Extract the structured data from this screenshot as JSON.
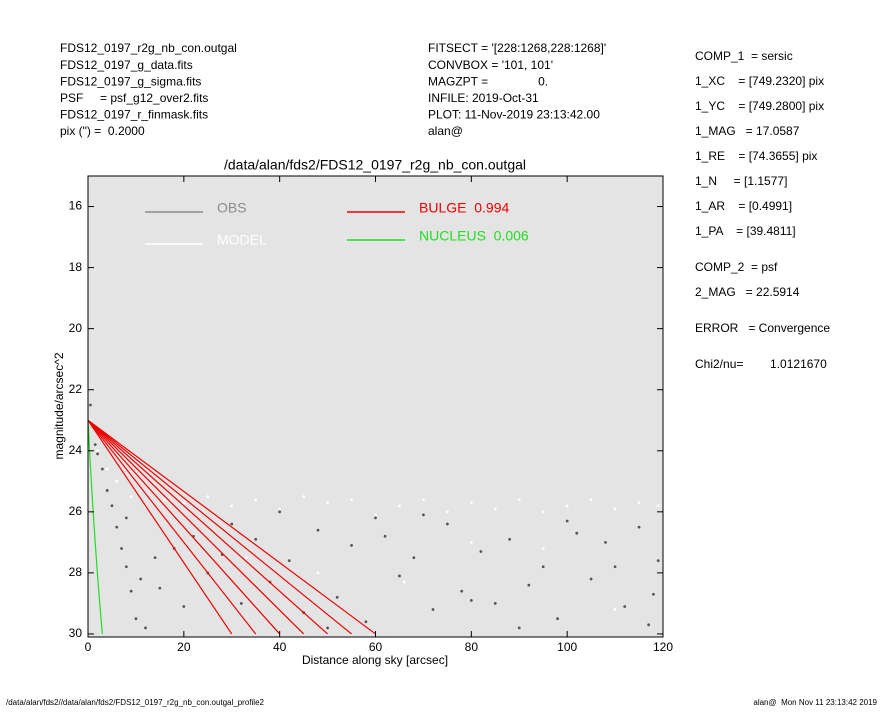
{
  "header": {
    "left": [
      "FDS12_0197_r2g_nb_con.outgal",
      "FDS12_0197_g_data.fits",
      "FDS12_0197_g_sigma.fits",
      "PSF     = psf_g12_over2.fits",
      "FDS12_0197_r_finmask.fits",
      "pix (\") =  0.2000"
    ],
    "middle": [
      "FITSECT = '[228:1268,228:1268]'",
      "CONVBOX = '101, 101'",
      "MAGZPT =               0.",
      "INFILE: 2019-Oct-31",
      "PLOT: 11-Nov-2019 23:13:42.00",
      "alan@"
    ]
  },
  "sidebar": [
    [
      "COMP_1  = sersic",
      "1_XC    = [749.2320] pix",
      "1_YC    = [749.2800] pix",
      "1_MAG   = 17.0587",
      "1_RE    = [74.3655] pix",
      "1_N     = [1.1577]",
      "1_AR    = [0.4991]",
      "1_PA    = [39.4811]"
    ],
    [
      "COMP_2  = psf",
      "2_MAG   = 22.5914"
    ],
    [
      "ERROR   = Convergence"
    ],
    [
      "Chi2/nu=        1.0121670"
    ]
  ],
  "footer": {
    "left": "/data/alan/fds2//data/alan/fds2/FDS12_0197_r2g_nb_con.outgal_profile2",
    "right": "alan@  Mon Nov 11 23:13:42 2019"
  },
  "chart_data": {
    "type": "scatter",
    "title": "/data/alan/fds2/FDS12_0197_r2g_nb_con.outgal",
    "x_label": "Distance along sky [arcsec]",
    "y_label": "magnitude/arcsec^2",
    "xlim": [
      0,
      120
    ],
    "xticks": [
      0,
      20,
      40,
      60,
      80,
      100,
      120
    ],
    "ylim": [
      30.1,
      15
    ],
    "yticks": [
      16,
      18,
      20,
      22,
      24,
      26,
      28,
      30
    ],
    "background": "#e4e4e4",
    "series": [
      {
        "name": "OBS",
        "color": "#555555",
        "legend_color": "#8c8c8c",
        "mode": "markers",
        "x": [
          0.5,
          1,
          1.5,
          2,
          3,
          4,
          5,
          6,
          7,
          8,
          9,
          10,
          8,
          12,
          15,
          18,
          20,
          22,
          25,
          28,
          32,
          35,
          38,
          42,
          45,
          48,
          52,
          55,
          58,
          62,
          65,
          68,
          72,
          75,
          78,
          82,
          85,
          88,
          92,
          95,
          98,
          102,
          105,
          108,
          112,
          115,
          118,
          119,
          60,
          40,
          100,
          110,
          80,
          70,
          30,
          14,
          11,
          117,
          90,
          50
        ],
        "values": [
          22.5,
          23.2,
          23.8,
          24.1,
          24.6,
          25.3,
          25.8,
          26.5,
          27.2,
          27.8,
          28.6,
          29.5,
          26.2,
          29.8,
          28.5,
          27.2,
          29.1,
          26.8,
          28.0,
          27.4,
          29.0,
          26.9,
          28.3,
          27.6,
          29.3,
          26.6,
          28.8,
          27.1,
          29.6,
          26.8,
          28.1,
          27.5,
          29.2,
          26.4,
          28.6,
          27.3,
          29.0,
          26.9,
          28.4,
          27.8,
          29.5,
          26.7,
          28.2,
          27.0,
          29.1,
          26.5,
          28.7,
          27.6,
          26.2,
          26.0,
          26.3,
          27.8,
          28.9,
          26.1,
          26.4,
          27.5,
          28.2,
          29.7,
          29.8,
          29.8
        ]
      },
      {
        "name": "MODEL",
        "color": "#ffffff",
        "legend_color": "#ffffff",
        "mode": "markers",
        "x": [
          0.5,
          2,
          4,
          6,
          9,
          12,
          16,
          20,
          25,
          30,
          35,
          40,
          45,
          50,
          55,
          60,
          65,
          70,
          75,
          80,
          85,
          90,
          95,
          100,
          105,
          110,
          115,
          119,
          33,
          66,
          95,
          110,
          48,
          80
        ],
        "values": [
          23,
          24,
          24.6,
          25,
          25.5,
          25.8,
          25.6,
          25.7,
          25.5,
          25.8,
          25.6,
          25.9,
          25.5,
          25.7,
          25.6,
          26.1,
          25.8,
          25.6,
          26.0,
          25.7,
          25.9,
          25.6,
          26.0,
          25.8,
          25.6,
          25.9,
          25.7,
          25.8,
          27.5,
          28.3,
          27.2,
          29.2,
          28.0,
          27.0
        ]
      },
      {
        "name": "BULGE  0.994",
        "color": "#ee0000",
        "legend_color": "#ee0000",
        "mode": "lines",
        "lines": [
          {
            "x": [
              0,
              30
            ],
            "values": [
              23,
              30
            ]
          },
          {
            "x": [
              0,
              35
            ],
            "values": [
              23,
              30
            ]
          },
          {
            "x": [
              0,
              40
            ],
            "values": [
              23,
              30
            ]
          },
          {
            "x": [
              0,
              45
            ],
            "values": [
              23,
              30
            ]
          },
          {
            "x": [
              0,
              50
            ],
            "values": [
              23,
              30
            ]
          },
          {
            "x": [
              0,
              55
            ],
            "values": [
              23,
              30
            ]
          },
          {
            "x": [
              0,
              60
            ],
            "values": [
              23,
              30
            ]
          }
        ]
      },
      {
        "name": "NUCLEUS  0.006",
        "color": "#22dd22",
        "legend_color": "#22dd22",
        "mode": "lines",
        "lines": [
          {
            "x": [
              0,
              0.5,
              1,
              1.5,
              2,
              2.5,
              3
            ],
            "values": [
              23,
              24.5,
              25.8,
              27,
              28.1,
              29.1,
              30
            ]
          }
        ]
      }
    ]
  }
}
